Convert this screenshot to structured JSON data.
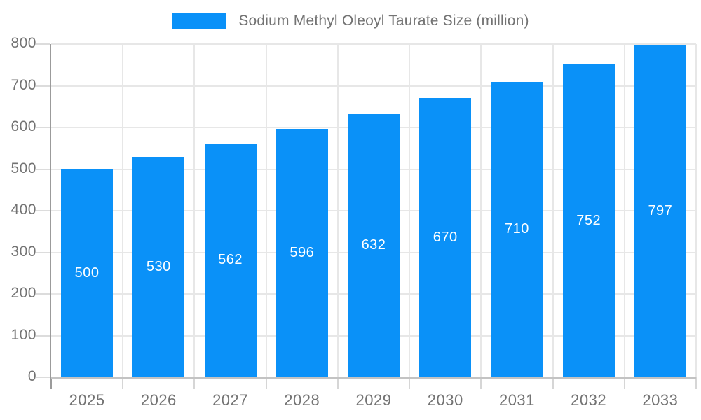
{
  "legend": {
    "label": "Sodium Methyl Oleoyl Taurate Size (million)"
  },
  "colors": {
    "bar": "#0a91f8",
    "value_label": "#ffffff",
    "axis_line": "#9b9b9b",
    "grid_line": "#e7e7e7",
    "tick_line": "#d6d6d6",
    "text": "#737373",
    "background": "#ffffff"
  },
  "chart_data": {
    "type": "bar",
    "title": "Sodium Methyl Oleoyl Taurate Size (million)",
    "categories": [
      "2025",
      "2026",
      "2027",
      "2028",
      "2029",
      "2030",
      "2031",
      "2032",
      "2033"
    ],
    "values": [
      500,
      530,
      562,
      596,
      632,
      670,
      710,
      752,
      797
    ],
    "xlabel": "",
    "ylabel": "",
    "ylim": [
      0,
      800
    ],
    "ytick_step": 100,
    "ytick_labels": [
      "0",
      "100",
      "200",
      "300",
      "400",
      "500",
      "600",
      "700",
      "800"
    ],
    "grid": true,
    "legend_position": "top",
    "value_label_position": "inside-center"
  }
}
